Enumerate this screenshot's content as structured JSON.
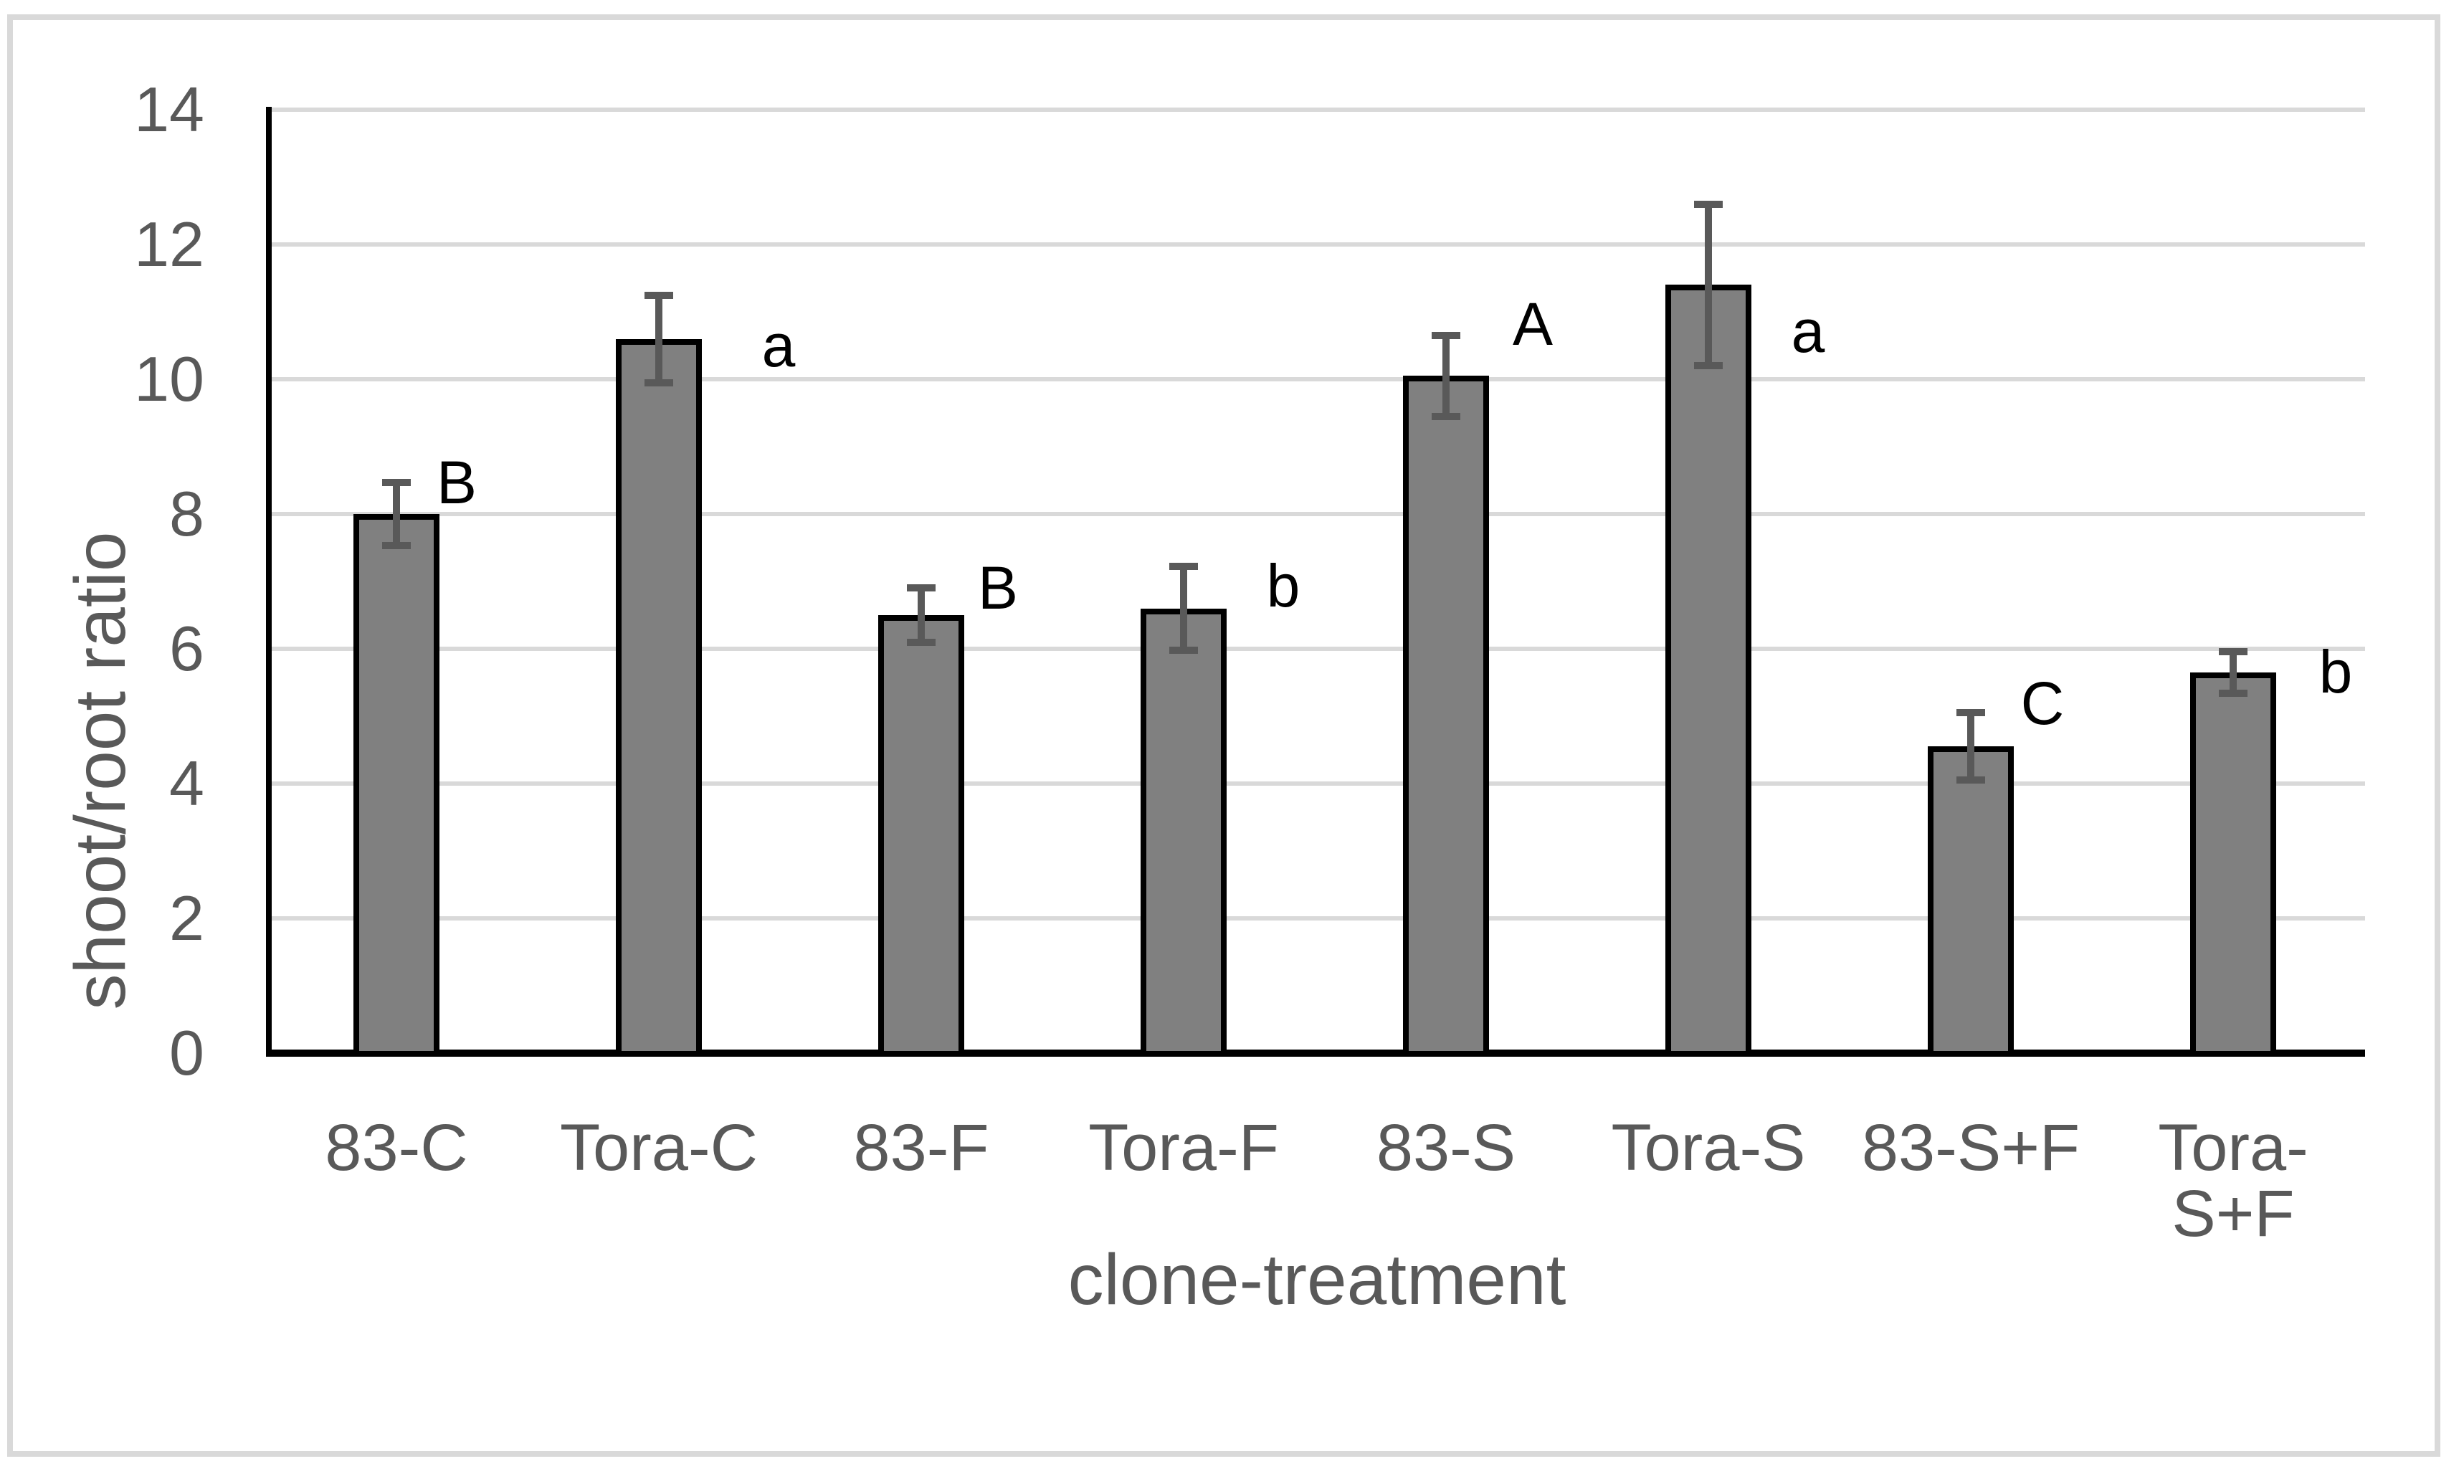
{
  "chart_data": {
    "type": "bar",
    "title": "",
    "xlabel": "clone-treatment",
    "ylabel": "shoot/root ratio",
    "categories": [
      "83-C",
      "Tora-C",
      "83-F",
      "Tora-F",
      "83-S",
      "Tora-S",
      "83-S+F",
      "Tora-S+F"
    ],
    "values": [
      8.0,
      10.6,
      6.5,
      6.6,
      10.05,
      11.4,
      4.55,
      5.65
    ],
    "error_bars": [
      0.47,
      0.65,
      0.4,
      0.62,
      0.6,
      1.2,
      0.5,
      0.31
    ],
    "sig_letters": [
      "B",
      "a",
      "B",
      "b",
      "A",
      "a",
      "C",
      "b"
    ],
    "ylim": [
      0,
      14
    ],
    "yticks": [
      0,
      2,
      4,
      6,
      8,
      10,
      12,
      14
    ],
    "grid": true,
    "legend": "none",
    "bar_color": "#808080",
    "bar_border_color": "#000000",
    "error_color": "#595959",
    "gridline_color": "#d9d9d9",
    "axis_line_color": "#000000",
    "tick_label_color": "#595959",
    "sig_letter_color": "#000000",
    "figure_border_color": "#d9d9d9"
  }
}
